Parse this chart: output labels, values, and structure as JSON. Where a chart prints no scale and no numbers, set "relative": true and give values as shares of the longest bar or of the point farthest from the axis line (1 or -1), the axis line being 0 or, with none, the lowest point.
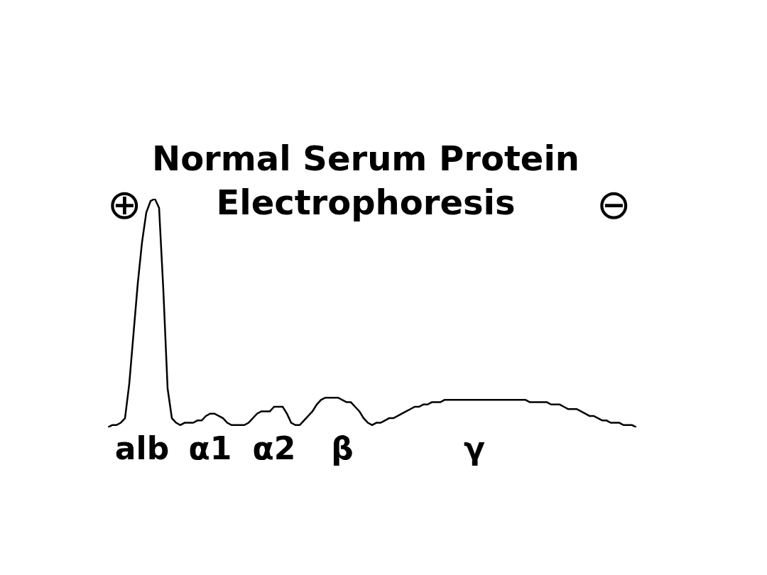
{
  "chart_data": {
    "type": "line",
    "title": "Normal Serum Protein Electrophoresis",
    "relative": true,
    "color": "#000000",
    "categories": [
      null,
      null,
      null,
      null,
      null,
      null,
      null,
      null,
      "alb",
      null,
      null,
      null,
      null,
      null,
      null,
      null,
      null,
      null,
      null,
      null,
      null,
      null,
      null,
      null,
      "α1",
      null,
      null,
      null,
      null,
      null,
      null,
      null,
      null,
      null,
      null,
      null,
      null,
      null,
      null,
      "α2",
      null,
      null,
      null,
      null,
      null,
      null,
      null,
      null,
      null,
      null,
      null,
      null,
      null,
      null,
      null,
      "β",
      null,
      null,
      null,
      null,
      null,
      null,
      null,
      null,
      null,
      null,
      null,
      null,
      null,
      null,
      null,
      null,
      null,
      null,
      null,
      null,
      null,
      null,
      null,
      null,
      null,
      null,
      null,
      null,
      null,
      null,
      "γ",
      null,
      null,
      null,
      null,
      null,
      null,
      null,
      null,
      null,
      null,
      null,
      null,
      null,
      null,
      null,
      null,
      null,
      null,
      null,
      null,
      null,
      null,
      null,
      null,
      null,
      null,
      null,
      null,
      null,
      null,
      null,
      null,
      null,
      null,
      null,
      null,
      null,
      null
    ],
    "values": [
      0,
      0.01,
      0.01,
      0.02,
      0.04,
      0.19,
      0.41,
      0.63,
      0.81,
      0.94,
      0.99,
      1,
      0.96,
      0.6,
      0.17,
      0.04,
      0.02,
      0.01,
      0.02,
      0.02,
      0.02,
      0.03,
      0.03,
      0.05,
      0.06,
      0.06,
      0.05,
      0.04,
      0.02,
      0.01,
      0.01,
      0.01,
      0.01,
      0.02,
      0.04,
      0.06,
      0.07,
      0.07,
      0.07,
      0.09,
      0.09,
      0.09,
      0.06,
      0.02,
      0.01,
      0.01,
      0.03,
      0.05,
      0.07,
      0.1,
      0.12,
      0.13,
      0.13,
      0.13,
      0.13,
      0.12,
      0.11,
      0.11,
      0.09,
      0.07,
      0.04,
      0.02,
      0.01,
      0.02,
      0.02,
      0.03,
      0.04,
      0.04,
      0.05,
      0.06,
      0.07,
      0.08,
      0.09,
      0.09,
      0.1,
      0.1,
      0.11,
      0.11,
      0.11,
      0.12,
      0.12,
      0.12,
      0.12,
      0.12,
      0.12,
      0.12,
      0.12,
      0.12,
      0.12,
      0.12,
      0.12,
      0.12,
      0.12,
      0.12,
      0.12,
      0.12,
      0.12,
      0.12,
      0.12,
      0.11,
      0.11,
      0.11,
      0.11,
      0.11,
      0.1,
      0.1,
      0.1,
      0.09,
      0.08,
      0.08,
      0.08,
      0.07,
      0.06,
      0.05,
      0.05,
      0.04,
      0.03,
      0.03,
      0.02,
      0.02,
      0.02,
      0.01,
      0.01,
      0.01,
      0
    ],
    "annotations": [
      "⊕",
      "⊖"
    ]
  }
}
